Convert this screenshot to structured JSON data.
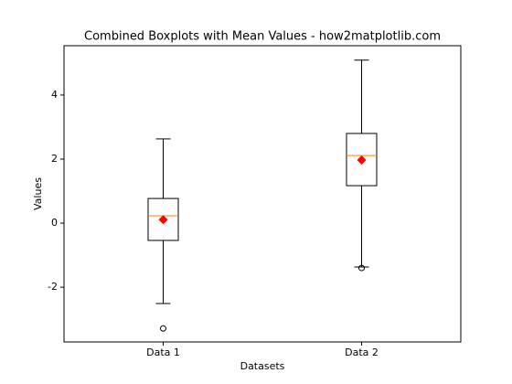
{
  "chart_data": {
    "type": "box",
    "title": "Combined Boxplots with Mean Values - how2matplotlib.com",
    "x_label": "Datasets",
    "y_label": "Values",
    "categories": [
      "Data 1",
      "Data 2"
    ],
    "boxes": [
      {
        "whislo": -2.51,
        "q1": -0.54,
        "med": 0.23,
        "q3": 0.77,
        "whishi": 2.63,
        "mean": 0.11,
        "fliers": [
          -3.29
        ]
      },
      {
        "whislo": -1.37,
        "q1": 1.17,
        "med": 2.11,
        "q3": 2.8,
        "whishi": 5.09,
        "mean": 1.97,
        "fliers": [
          -1.4
        ]
      }
    ],
    "box_color": "#000000",
    "median_color": "#ff7f0e",
    "mean_color": "#ff0000",
    "ylim": [
      -3.71,
      5.54
    ],
    "yticks": [
      -2,
      0,
      2,
      4
    ],
    "grid": false
  }
}
